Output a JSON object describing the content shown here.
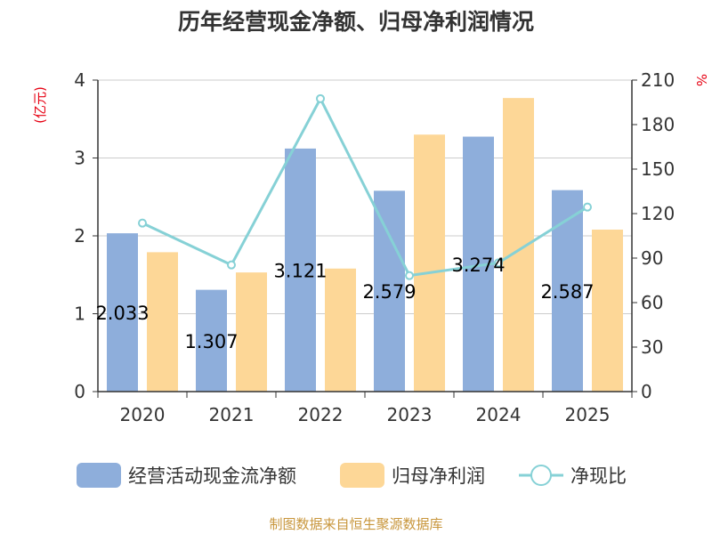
{
  "chart_data": {
    "type": "bar",
    "title": "历年经营现金净额、归母净利润情况",
    "categories": [
      "2020",
      "2021",
      "2022",
      "2023",
      "2024",
      "2025"
    ],
    "y_left": {
      "unit": "(亿元)",
      "ylim": [
        0,
        4
      ],
      "ticks": [
        0,
        1,
        2,
        3,
        4
      ]
    },
    "y_right": {
      "unit": "%",
      "ylim": [
        0,
        210
      ],
      "ticks": [
        0,
        30,
        60,
        90,
        120,
        150,
        180,
        210
      ]
    },
    "series": [
      {
        "name": "经营活动现金流净额",
        "kind": "bar",
        "axis": "left",
        "color": "#8eaedb",
        "values": [
          2.033,
          1.307,
          3.121,
          2.579,
          3.274,
          2.587
        ],
        "labels": [
          "2.033",
          "1.307",
          "3.121",
          "2.579",
          "3.274",
          "2.587"
        ]
      },
      {
        "name": "归母净利润",
        "kind": "bar",
        "axis": "left",
        "color": "#fdd797",
        "values": [
          1.79,
          1.53,
          1.58,
          3.3,
          3.77,
          2.08
        ]
      },
      {
        "name": "净现比",
        "kind": "line",
        "axis": "right",
        "color": "#86d1d6",
        "values": [
          113.6,
          85.4,
          197.5,
          78.2,
          86.8,
          124.4
        ]
      }
    ],
    "grid": true,
    "legend_position": "bottom"
  },
  "source_note": "制图数据来自恒生聚源数据库"
}
